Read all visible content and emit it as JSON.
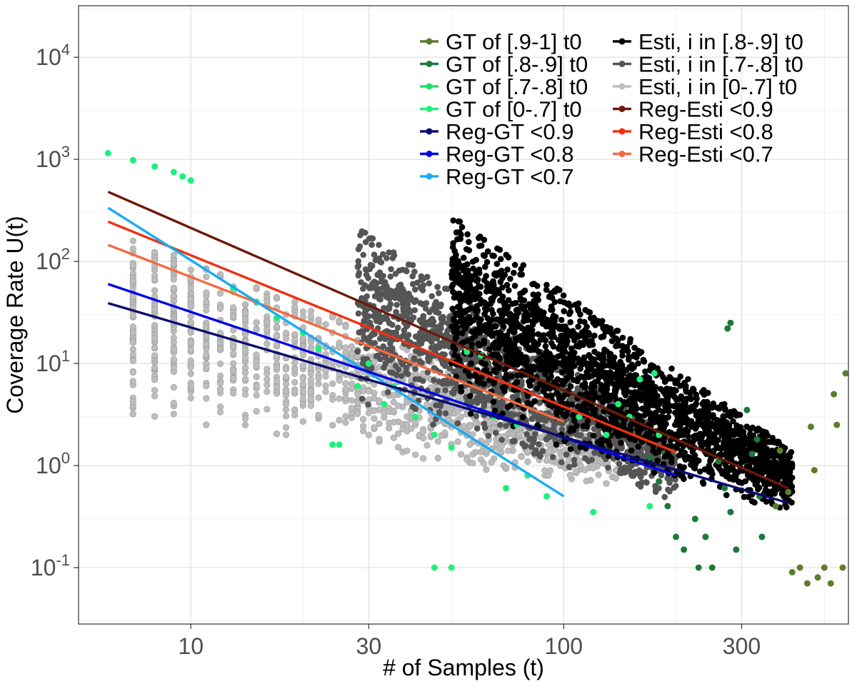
{
  "chart_data": {
    "type": "scatter",
    "title": "",
    "xlabel": "# of Samples (t)",
    "ylabel": "Coverage Rate U(t)",
    "x_scale": "log10",
    "y_scale": "log10",
    "xlim": [
      5.0,
      580
    ],
    "ylim": [
      0.028,
      32000
    ],
    "x_ticks": [
      10,
      30,
      100,
      300
    ],
    "x_tick_labels": [
      "10",
      "30",
      "100",
      "300"
    ],
    "y_ticks": [
      0.1,
      1,
      10,
      100,
      1000,
      10000
    ],
    "y_tick_labels": [
      {
        "base": "10",
        "exp": "-1"
      },
      {
        "base": "10",
        "exp": "0"
      },
      {
        "base": "10",
        "exp": "1"
      },
      {
        "base": "10",
        "exp": "2"
      },
      {
        "base": "10",
        "exp": "3"
      },
      {
        "base": "10",
        "exp": "4"
      }
    ],
    "grid": true,
    "legend_position": "top-right",
    "legend": [
      {
        "label": "GT of [.9-1] t0",
        "color": "#5a7f2b"
      },
      {
        "label": "GT of [.8-.9] t0",
        "color": "#1a7a3a"
      },
      {
        "label": "GT of [.7-.8] t0",
        "color": "#22e06a"
      },
      {
        "label": "GT of [0-.7] t0",
        "color": "#1ff07a"
      },
      {
        "label": "Reg-GT <0.9",
        "color": "#0b0b6e"
      },
      {
        "label": "Reg-GT <0.8",
        "color": "#0000e6"
      },
      {
        "label": "Reg-GT <0.7",
        "color": "#1aaaf5"
      },
      {
        "label": "Esti, i in [.8-.9] t0",
        "color": "#000000"
      },
      {
        "label": "Esti, i in [.7-.8] t0",
        "color": "#555555"
      },
      {
        "label": "Esti, i in [0-.7] t0",
        "color": "#bdbdbd"
      },
      {
        "label": "Reg-Esti <0.9",
        "color": "#6b1a08"
      },
      {
        "label": "Reg-Esti <0.8",
        "color": "#f03010"
      },
      {
        "label": "Reg-Esti <0.7",
        "color": "#f56a40"
      }
    ],
    "regression_lines": [
      {
        "name": "Reg-Esti <0.9",
        "color": "#6b1a08",
        "x": [
          6,
          400
        ],
        "y": [
          480,
          0.6
        ]
      },
      {
        "name": "Reg-Esti <0.8",
        "color": "#f03010",
        "x": [
          6,
          200
        ],
        "y": [
          245,
          1.35
        ]
      },
      {
        "name": "Reg-Esti <0.7",
        "color": "#f56a40",
        "x": [
          6,
          100
        ],
        "y": [
          145,
          2.7
        ]
      },
      {
        "name": "Reg-GT <0.7",
        "color": "#1aaaf5",
        "x": [
          6,
          100
        ],
        "y": [
          335,
          0.5
        ]
      },
      {
        "name": "Reg-GT <0.8",
        "color": "#0000e6",
        "x": [
          6,
          200
        ],
        "y": [
          60,
          0.8
        ]
      },
      {
        "name": "Reg-GT <0.9",
        "color": "#0b0b6e",
        "x": [
          6,
          400
        ],
        "y": [
          39,
          0.43
        ]
      }
    ],
    "series": [
      {
        "name": "GT of [0-.7] t0",
        "color": "#1ff07a",
        "points": [
          [
            6,
            1150
          ],
          [
            7,
            980
          ],
          [
            8,
            850
          ],
          [
            9,
            750
          ],
          [
            9.5,
            680
          ],
          [
            10,
            620
          ],
          [
            13,
            55
          ],
          [
            15,
            40
          ],
          [
            17,
            28
          ],
          [
            20,
            20
          ],
          [
            22,
            14
          ],
          [
            28,
            6
          ],
          [
            30,
            10
          ],
          [
            33,
            4
          ],
          [
            35,
            6
          ],
          [
            40,
            3
          ],
          [
            45,
            2
          ],
          [
            50,
            1.5
          ],
          [
            55,
            13
          ],
          [
            60,
            12
          ],
          [
            65,
            3
          ],
          [
            70,
            0.6
          ],
          [
            75,
            2.5
          ],
          [
            80,
            0.8
          ],
          [
            90,
            0.5
          ],
          [
            110,
            3
          ],
          [
            120,
            0.35
          ],
          [
            130,
            2
          ],
          [
            140,
            4
          ],
          [
            150,
            3
          ],
          [
            160,
            7
          ],
          [
            170,
            0.4
          ],
          [
            175,
            8
          ],
          [
            180,
            2
          ],
          [
            50,
            0.1
          ],
          [
            45,
            0.1
          ],
          [
            25,
            1.6
          ],
          [
            24,
            1.6
          ]
        ]
      },
      {
        "name": "GT of [.8-.9] t0",
        "color": "#1a7a3a",
        "points": [
          [
            170,
            1.2
          ],
          [
            180,
            0.7
          ],
          [
            190,
            0.4
          ],
          [
            200,
            0.2
          ],
          [
            210,
            0.15
          ],
          [
            225,
            0.3
          ],
          [
            240,
            0.2
          ],
          [
            260,
            1.1
          ],
          [
            270,
            0.6
          ],
          [
            280,
            0.35
          ],
          [
            290,
            0.15
          ],
          [
            320,
            1.3
          ],
          [
            335,
            0.5
          ],
          [
            340,
            0.2
          ],
          [
            280,
            25
          ],
          [
            275,
            22
          ],
          [
            310,
            3.5
          ],
          [
            330,
            1.8
          ],
          [
            250,
            0.1
          ],
          [
            230,
            0.1
          ]
        ]
      },
      {
        "name": "GT of [.9-1] t0",
        "color": "#5a7f2b",
        "points": [
          [
            370,
            0.4
          ],
          [
            380,
            1.4
          ],
          [
            400,
            0.55
          ],
          [
            410,
            0.09
          ],
          [
            430,
            0.1
          ],
          [
            450,
            0.07
          ],
          [
            480,
            0.08
          ],
          [
            500,
            0.1
          ],
          [
            520,
            0.07
          ],
          [
            460,
            2.4
          ],
          [
            470,
            0.9
          ],
          [
            530,
            5
          ],
          [
            540,
            2.5
          ],
          [
            560,
            0.1
          ],
          [
            570,
            8
          ],
          [
            580,
            10
          ],
          [
            590,
            0.12
          ],
          [
            600,
            1.8
          ],
          [
            610,
            0.1
          ],
          [
            580,
            1.0
          ]
        ]
      }
    ]
  }
}
